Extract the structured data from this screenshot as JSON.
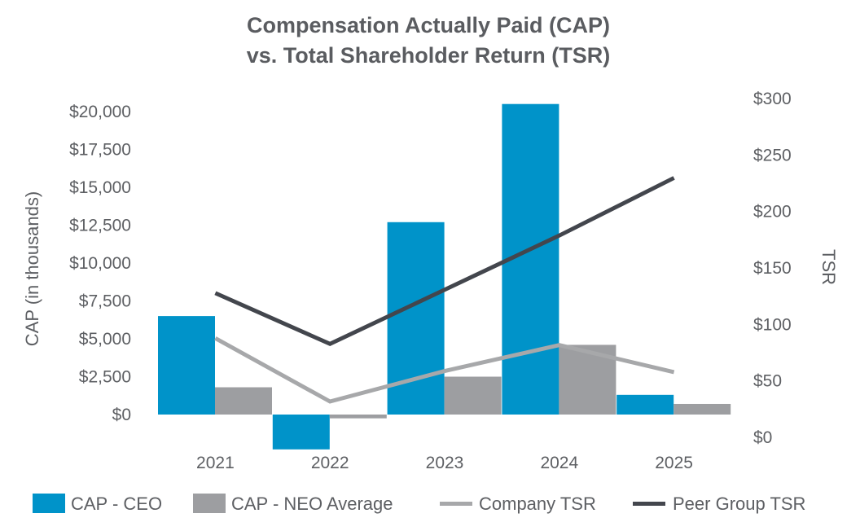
{
  "chart_data": {
    "type": "bar",
    "title_lines": [
      "Compensation Actually Paid (CAP)",
      "vs. Total Shareholder Return (TSR)"
    ],
    "categories": [
      "2021",
      "2022",
      "2023",
      "2024",
      "2025"
    ],
    "series": [
      {
        "name": "CAP - CEO",
        "kind": "bar",
        "axis": "left",
        "color": "#0093c9",
        "values": [
          6500,
          -2300,
          12700,
          20500,
          1300
        ]
      },
      {
        "name": "CAP - NEO Average",
        "kind": "bar",
        "axis": "left",
        "color": "#9d9ea1",
        "values": [
          1800,
          -250,
          2500,
          4600,
          700
        ]
      },
      {
        "name": "Company TSR",
        "kind": "line",
        "axis": "right",
        "color": "#a7a8aa",
        "values": [
          87,
          31,
          58,
          81,
          57
        ]
      },
      {
        "name": "Peer Group TSR",
        "kind": "line",
        "axis": "right",
        "color": "#43464d",
        "values": [
          127,
          82,
          130,
          178,
          229
        ]
      }
    ],
    "y_left": {
      "label": "CAP (in thousands)",
      "min": -2500,
      "max": 21000,
      "ticks": [
        0,
        2500,
        5000,
        7500,
        10000,
        12500,
        15000,
        17500,
        20000
      ],
      "tick_labels": [
        "$0",
        "$2,500",
        "$5,000",
        "$7,500",
        "$10,000",
        "$12,500",
        "$15,000",
        "$17,500",
        "$20,000"
      ]
    },
    "y_right": {
      "label": "TSR",
      "min": 0,
      "max": 300,
      "ticks": [
        0,
        50,
        100,
        150,
        200,
        250,
        300
      ],
      "tick_labels": [
        "$0",
        "$50",
        "$100",
        "$150",
        "$200",
        "$250",
        "$300"
      ]
    },
    "grid": false,
    "legend_position": "bottom"
  }
}
